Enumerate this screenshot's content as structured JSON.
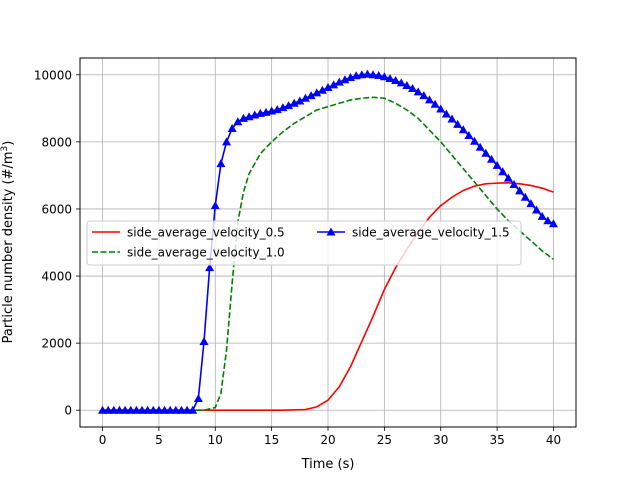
{
  "chart_data": {
    "type": "line",
    "title": "",
    "xlabel": "Time (s)",
    "ylabel": "Particle number density (#/m³)",
    "ylabel_main": "Particle number density (#/m",
    "ylabel_sup": "3",
    "ylabel_close": ")",
    "xlim": [
      -2,
      42
    ],
    "ylim": [
      -500,
      10500
    ],
    "xticks": [
      0,
      5,
      10,
      15,
      20,
      25,
      30,
      35,
      40
    ],
    "xtick_labels": [
      "0",
      "5",
      "10",
      "15",
      "20",
      "25",
      "30",
      "35",
      "40"
    ],
    "yticks": [
      0,
      2000,
      4000,
      6000,
      8000,
      10000
    ],
    "ytick_labels": [
      "0",
      "2000",
      "4000",
      "6000",
      "8000",
      "10000"
    ],
    "grid": true,
    "legend_position": "center-left",
    "series": [
      {
        "name": "side_average_velocity_0.5",
        "color": "#ff0000",
        "style": "solid",
        "marker": "none",
        "x": [
          0,
          8,
          16,
          18,
          19,
          20,
          21,
          22,
          23,
          24,
          25,
          26,
          27,
          28,
          29,
          30,
          31,
          32,
          33,
          34,
          35,
          36,
          37,
          38,
          39,
          40
        ],
        "y": [
          0,
          0,
          0,
          20,
          100,
          300,
          700,
          1300,
          2050,
          2800,
          3600,
          4250,
          4800,
          5300,
          5750,
          6100,
          6350,
          6550,
          6680,
          6750,
          6770,
          6780,
          6750,
          6700,
          6620,
          6500
        ]
      },
      {
        "name": "side_average_velocity_1.0",
        "color": "#008000",
        "style": "dashed",
        "marker": "none",
        "x": [
          0,
          8,
          9,
          10,
          10.5,
          11,
          11.5,
          12,
          12.5,
          13,
          14,
          15,
          16,
          17,
          18,
          19,
          20,
          21,
          22,
          23,
          24,
          25,
          26,
          27,
          28,
          29,
          30,
          31,
          32,
          33,
          34,
          35,
          36,
          37,
          38,
          39,
          40
        ],
        "y": [
          0,
          0,
          0,
          80,
          500,
          1800,
          3800,
          5600,
          6500,
          7050,
          7650,
          8000,
          8300,
          8550,
          8750,
          8950,
          9050,
          9150,
          9250,
          9300,
          9330,
          9300,
          9150,
          8950,
          8700,
          8350,
          8000,
          7600,
          7200,
          6800,
          6400,
          6000,
          5650,
          5350,
          5050,
          4750,
          4500
        ]
      },
      {
        "name": "side_average_velocity_1.5",
        "color": "#0000ff",
        "style": "solid",
        "marker": "triangle",
        "x": [
          0,
          0.5,
          1,
          1.5,
          2,
          2.5,
          3,
          3.5,
          4,
          4.5,
          5,
          5.5,
          6,
          6.5,
          7,
          7.5,
          8,
          8.5,
          9,
          9.5,
          10,
          10.5,
          11,
          11.5,
          12,
          12.5,
          13,
          13.5,
          14,
          14.5,
          15,
          15.5,
          16,
          16.5,
          17,
          17.5,
          18,
          18.5,
          19,
          19.5,
          20,
          20.5,
          21,
          21.5,
          22,
          22.5,
          23,
          23.5,
          24,
          24.5,
          25,
          25.5,
          26,
          26.5,
          27,
          27.5,
          28,
          28.5,
          29,
          29.5,
          30,
          30.5,
          31,
          31.5,
          32,
          32.5,
          33,
          33.5,
          34,
          34.5,
          35,
          35.5,
          36,
          36.5,
          37,
          37.5,
          38,
          38.5,
          39,
          39.5,
          40
        ],
        "y": [
          0,
          0,
          0,
          0,
          0,
          0,
          0,
          0,
          0,
          0,
          0,
          0,
          0,
          0,
          0,
          0,
          0,
          350,
          2050,
          4250,
          6100,
          7350,
          8000,
          8400,
          8600,
          8700,
          8750,
          8800,
          8850,
          8880,
          8920,
          8960,
          9020,
          9080,
          9150,
          9220,
          9300,
          9380,
          9460,
          9540,
          9620,
          9700,
          9780,
          9850,
          9920,
          9970,
          10000,
          10020,
          10000,
          9980,
          9940,
          9890,
          9830,
          9760,
          9680,
          9590,
          9490,
          9380,
          9250,
          9120,
          8980,
          8830,
          8680,
          8520,
          8360,
          8190,
          8020,
          7840,
          7660,
          7480,
          7300,
          7110,
          6920,
          6730,
          6540,
          6350,
          6160,
          5970,
          5780,
          5650,
          5560
        ]
      }
    ]
  }
}
